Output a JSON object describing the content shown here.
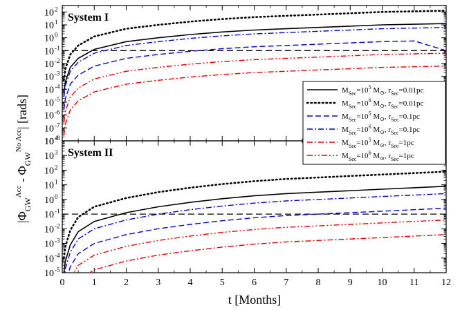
{
  "colors": {
    "black": "#000000",
    "blue": "#0000cc",
    "red": "#dd0000"
  },
  "labels": {
    "xlabel": "t [Months]",
    "ylabel": "|Φ_GW^Acc - Φ_GW^No Acc| [rads]"
  },
  "legend": {
    "placement": "inside-right, straddling both panels",
    "entries": [
      {
        "mass": "5",
        "r": "0.01pc",
        "color": "black",
        "dash": "solid"
      },
      {
        "mass": "6",
        "r": "0.01pc",
        "color": "black",
        "dash": "dotted"
      },
      {
        "mass": "5",
        "r": "0.1pc",
        "color": "blue",
        "dash": "dashed"
      },
      {
        "mass": "6",
        "r": "0.1pc",
        "color": "blue",
        "dash": "dashdot"
      },
      {
        "mass": "5",
        "r": "1pc",
        "color": "red",
        "dash": "dashdot"
      },
      {
        "mass": "6",
        "r": "1pc",
        "color": "red",
        "dash": "dashdotdot"
      }
    ]
  },
  "chart_data": [
    {
      "type": "line",
      "title": "System I",
      "x": [
        0.05,
        0.1,
        0.25,
        0.5,
        1,
        2,
        3,
        4,
        5,
        6,
        7,
        8,
        9,
        10,
        11,
        12
      ],
      "xlim": [
        0,
        12
      ],
      "ylim_log10": [
        -8,
        2.5
      ],
      "yscale": "log",
      "y_ticks": [
        "10^2",
        "10^1",
        "10^0",
        "10^-1",
        "10^-2",
        "10^-3",
        "10^-4",
        "10^-5",
        "10^-6",
        "10^-7",
        "10^-8"
      ],
      "x_ticks": [
        "0",
        "1",
        "2",
        "3",
        "4",
        "5",
        "6",
        "7",
        "8",
        "9",
        "10",
        "11",
        "12"
      ],
      "threshold": 0.1,
      "series": [
        {
          "log10_values": [
            -4.3,
            -3.4,
            -2.3,
            -1.6,
            -0.9,
            -0.3,
            0.0,
            0.25,
            0.45,
            0.6,
            0.7,
            0.8,
            0.9,
            1.0,
            1.05,
            1.1
          ]
        },
        {
          "log10_values": [
            -3.3,
            -2.4,
            -1.3,
            -0.6,
            0.1,
            0.7,
            1.0,
            1.25,
            1.45,
            1.6,
            1.7,
            1.8,
            1.9,
            2.0,
            2.05,
            2.1
          ]
        },
        {
          "log10_values": [
            -5.6,
            -4.7,
            -3.6,
            -2.9,
            -2.2,
            -1.6,
            -1.3,
            -1.05,
            -0.85,
            -0.7,
            -0.6,
            -0.5,
            -0.4,
            -0.3,
            -0.25,
            -1.0
          ]
        },
        {
          "log10_values": [
            -4.6,
            -3.7,
            -2.6,
            -1.9,
            -1.2,
            -0.6,
            -0.3,
            -0.05,
            0.15,
            0.3,
            0.4,
            0.5,
            0.6,
            0.7,
            0.75,
            0.8
          ]
        },
        {
          "log10_values": [
            -7.6,
            -6.7,
            -5.6,
            -4.9,
            -4.2,
            -3.6,
            -3.3,
            -3.05,
            -2.85,
            -2.7,
            -2.6,
            -2.5,
            -2.4,
            -2.3,
            -2.25,
            -2.2
          ]
        },
        {
          "log10_values": [
            -6.6,
            -5.7,
            -4.6,
            -3.9,
            -3.2,
            -2.6,
            -2.3,
            -2.05,
            -1.85,
            -1.7,
            -1.6,
            -1.5,
            -1.4,
            -1.3,
            -1.25,
            -1.2
          ]
        }
      ]
    },
    {
      "type": "line",
      "title": "System II",
      "x": [
        0.05,
        0.1,
        0.25,
        0.5,
        1,
        2,
        3,
        4,
        5,
        6,
        7,
        8,
        9,
        10,
        11,
        12
      ],
      "xlim": [
        0,
        12
      ],
      "ylim_log10": [
        -5,
        4
      ],
      "yscale": "log",
      "y_ticks": [
        "10^3",
        "10^2",
        "10^1",
        "10^0",
        "10^-1",
        "10^-2",
        "10^-3",
        "10^-4",
        "10^-5"
      ],
      "x_ticks": [
        "0",
        "1",
        "2",
        "3",
        "4",
        "5",
        "6",
        "7",
        "8",
        "9",
        "10",
        "11",
        "12"
      ],
      "threshold": 0.1,
      "series": [
        {
          "log10_values": [
            -5.0,
            -4.2,
            -3.1,
            -2.2,
            -1.5,
            -0.9,
            -0.5,
            -0.2,
            0.05,
            0.25,
            0.4,
            0.5,
            0.6,
            0.7,
            0.8,
            0.9
          ]
        },
        {
          "log10_values": [
            -4.0,
            -3.2,
            -2.1,
            -1.2,
            -0.5,
            0.1,
            0.5,
            0.8,
            1.05,
            1.25,
            1.4,
            1.5,
            1.6,
            1.7,
            1.8,
            1.9
          ]
        },
        {
          "log10_values": [
            -6.5,
            -5.7,
            -4.6,
            -3.7,
            -3.0,
            -2.4,
            -2.0,
            -1.7,
            -1.45,
            -1.25,
            -1.1,
            -1.0,
            -0.9,
            -0.8,
            -0.7,
            -0.6
          ]
        },
        {
          "log10_values": [
            -5.5,
            -4.7,
            -3.6,
            -2.7,
            -2.0,
            -1.4,
            -1.0,
            -0.7,
            -0.45,
            -0.25,
            -0.1,
            0.0,
            0.1,
            0.2,
            0.3,
            0.4
          ]
        },
        {
          "log10_values": [
            -8.3,
            -7.5,
            -6.4,
            -5.5,
            -4.8,
            -4.2,
            -3.8,
            -3.5,
            -3.25,
            -3.05,
            -2.9,
            -2.8,
            -2.7,
            -2.6,
            -2.5,
            -2.4
          ]
        },
        {
          "log10_values": [
            -7.3,
            -6.5,
            -5.4,
            -4.5,
            -3.8,
            -3.2,
            -2.8,
            -2.5,
            -2.25,
            -2.05,
            -1.9,
            -1.8,
            -1.7,
            -1.6,
            -1.5,
            -1.4
          ]
        }
      ]
    }
  ]
}
